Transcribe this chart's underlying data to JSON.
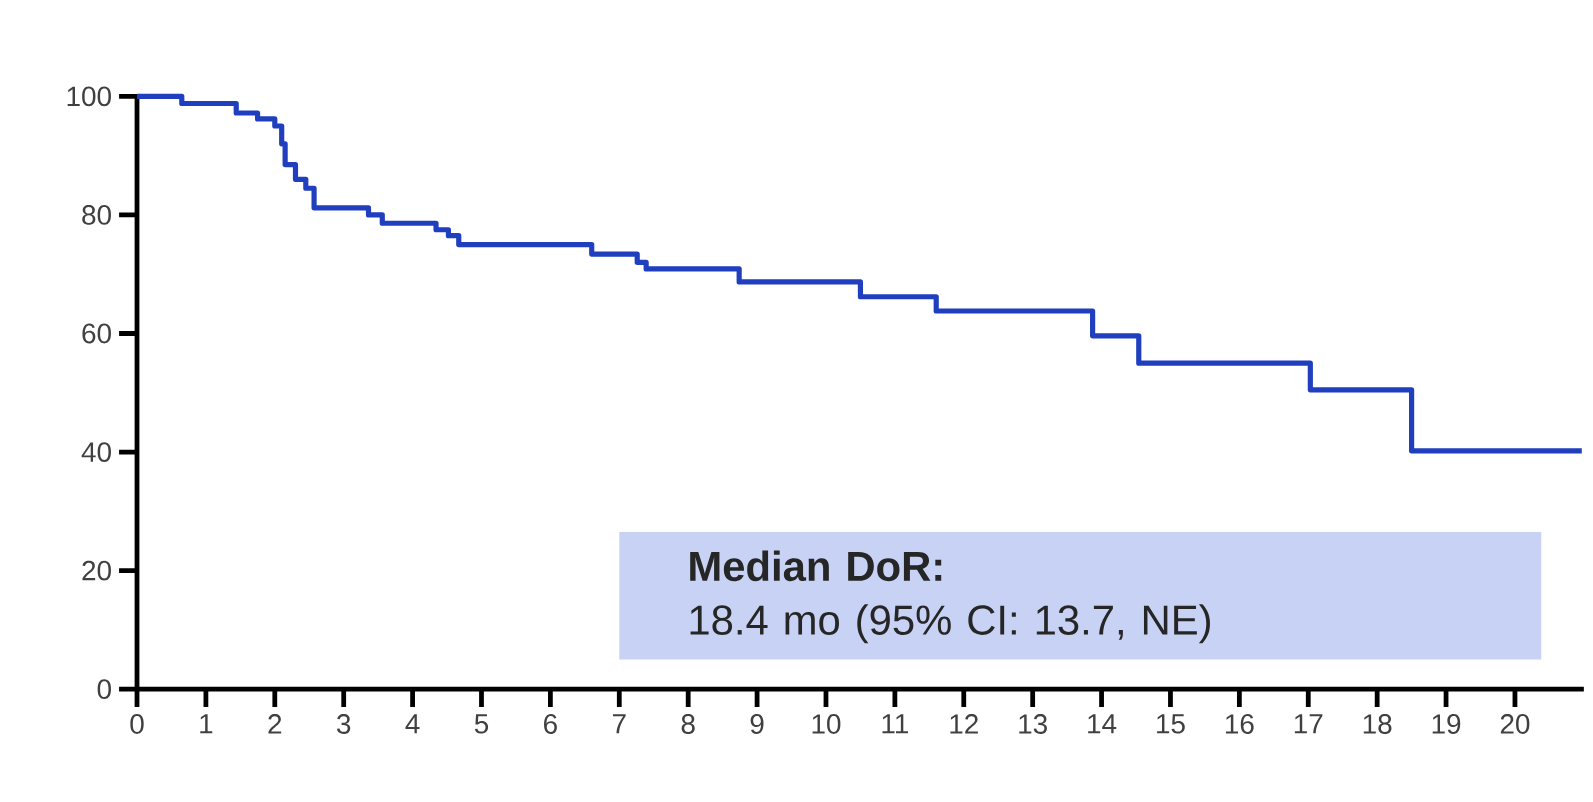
{
  "chart_data": {
    "type": "step",
    "x": [
      0,
      0.65,
      1.44,
      1.75,
      2.0,
      2.1,
      2.15,
      2.3,
      2.45,
      2.57,
      3.36,
      3.56,
      4.34,
      4.52,
      4.67,
      6.6,
      7.26,
      7.39,
      8.74,
      10.5,
      11.6,
      13.87,
      14.54,
      17.03,
      18.5,
      20.97
    ],
    "series": [
      {
        "color": "#1f3fbf",
        "values": [
          100,
          98.8,
          97.2,
          96.2,
          95,
          92,
          88.5,
          86,
          84.5,
          81.2,
          80,
          78.6,
          77.5,
          76.5,
          75,
          73.4,
          72,
          70.9,
          68.7,
          66.2,
          63.8,
          59.6,
          55,
          50.5,
          40.2,
          40.2
        ]
      }
    ],
    "xlim": [
      0,
      21
    ],
    "ylim": [
      0,
      100
    ],
    "xticks": [
      0,
      1,
      2,
      3,
      4,
      5,
      6,
      7,
      8,
      9,
      10,
      11,
      12,
      13,
      14,
      15,
      16,
      17,
      18,
      19,
      20
    ],
    "yticks": [
      0,
      20,
      40,
      60,
      80,
      100
    ],
    "annotations": [
      "**Median DoR:**",
      "18.4 mo (95% CI: 13.7, NE)"
    ],
    "grid": false
  }
}
